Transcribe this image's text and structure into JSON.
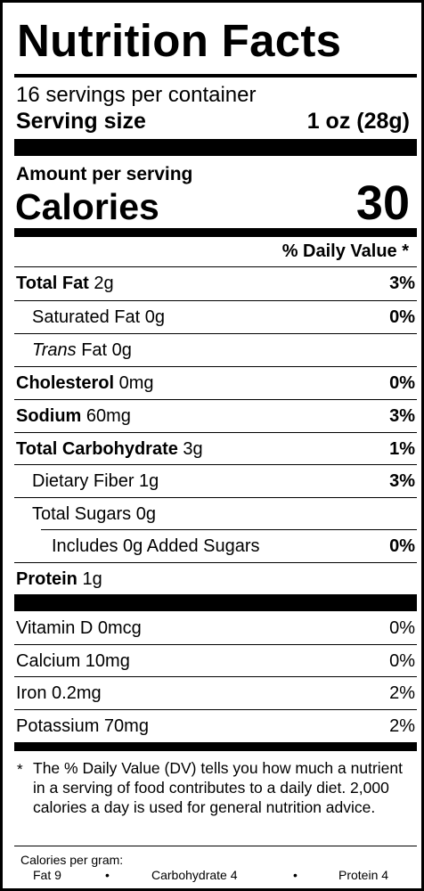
{
  "title": "Nutrition Facts",
  "servings_per_container": "16 servings per container",
  "serving_size_label": "Serving size",
  "serving_size_value": "1 oz (28g)",
  "amount_per_serving": "Amount per serving",
  "calories_label": "Calories",
  "calories_value": "30",
  "daily_value_header": "% Daily Value *",
  "nutrients": [
    {
      "bold": "Total Fat",
      "italic": "",
      "rest": " 2g",
      "pct": "3%"
    },
    {
      "bold": "",
      "italic": "",
      "rest": "Saturated Fat 0g",
      "pct": "0%"
    },
    {
      "bold": "",
      "italic": "Trans",
      "rest": " Fat 0g",
      "pct": ""
    },
    {
      "bold": "Cholesterol",
      "italic": "",
      "rest": " 0mg",
      "pct": "0%"
    },
    {
      "bold": "Sodium",
      "italic": "",
      "rest": " 60mg",
      "pct": "3%"
    },
    {
      "bold": "Total Carbohydrate",
      "italic": "",
      "rest": " 3g",
      "pct": "1%"
    },
    {
      "bold": "",
      "italic": "",
      "rest": "Dietary Fiber 1g",
      "pct": "3%"
    },
    {
      "bold": "",
      "italic": "",
      "rest": "Total Sugars 0g",
      "pct": ""
    },
    {
      "bold": "",
      "italic": "",
      "rest": "Includes 0g Added Sugars",
      "pct": "0%"
    },
    {
      "bold": "Protein",
      "italic": "",
      "rest": " 1g",
      "pct": ""
    }
  ],
  "vitamins": [
    {
      "name": "Vitamin D 0mcg",
      "pct": "0%"
    },
    {
      "name": "Calcium 10mg",
      "pct": "0%"
    },
    {
      "name": "Iron 0.2mg",
      "pct": "2%"
    },
    {
      "name": "Potassium 70mg",
      "pct": "2%"
    }
  ],
  "footnote_star": "*",
  "footnote": "The % Daily Value (DV) tells you how much a nutrient in a serving of food contributes to a daily diet. 2,000 calories a day is used for general nutrition advice.",
  "calories_per_gram_label": "Calories per gram:",
  "calories_per_gram": {
    "fat": "Fat 9",
    "bullet": "•",
    "carbohydrate": "Carbohydrate 4",
    "protein": "Protein 4"
  }
}
